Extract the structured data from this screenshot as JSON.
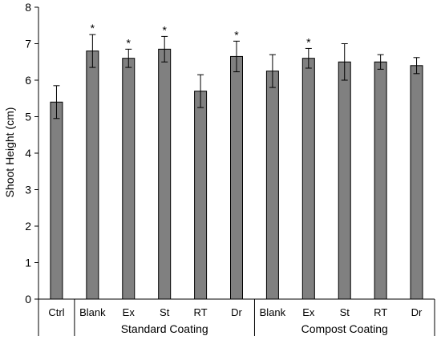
{
  "chart_data": {
    "type": "bar",
    "ylabel": "Shoot Height (cm)",
    "ylim": [
      0,
      8
    ],
    "yticks": [
      "0",
      "1",
      "2",
      "3",
      "4",
      "5",
      "6",
      "7",
      "8"
    ],
    "grid": false,
    "bar_color": "#808080",
    "categories": [
      "Ctrl",
      "Blank",
      "Ex",
      "St",
      "RT",
      "Dr",
      "Blank",
      "Ex",
      "St",
      "RT",
      "Dr"
    ],
    "values": [
      5.4,
      6.8,
      6.6,
      6.85,
      5.7,
      6.65,
      6.25,
      6.6,
      6.5,
      6.5,
      6.4
    ],
    "errors": [
      0.45,
      0.45,
      0.25,
      0.35,
      0.45,
      0.42,
      0.45,
      0.27,
      0.5,
      0.2,
      0.22
    ],
    "significance": [
      "",
      "*",
      "*",
      "*",
      "",
      "*",
      "",
      "*",
      "",
      "",
      ""
    ],
    "groups": [
      {
        "label": "",
        "categories": [
          0
        ]
      },
      {
        "label": "Standard Coating",
        "categories": [
          1,
          2,
          3,
          4,
          5
        ]
      },
      {
        "label": "Compost Coating",
        "categories": [
          6,
          7,
          8,
          9,
          10
        ]
      }
    ]
  }
}
